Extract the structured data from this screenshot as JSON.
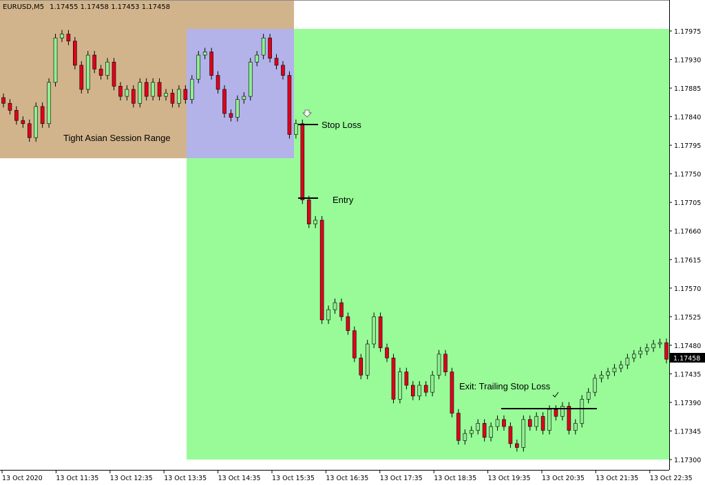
{
  "header": {
    "symbol": "EURUSD,M5",
    "ohlc": "1.17455 1.17458 1.17453 1.17458"
  },
  "colors": {
    "asian_zone": "#d2b48c",
    "overlap_zone": "#b3b3ea",
    "trade_zone": "#98fb98",
    "bull_candle": "#90ee90",
    "bear_candle": "#e0001b",
    "price_label_bg": "#000000"
  },
  "annotations": {
    "asian_range": "Tight Asian Session Range",
    "stop_loss": "Stop Loss",
    "entry": "Entry",
    "exit": "Exit: Trailing Stop Loss"
  },
  "chart_data": {
    "type": "candlestick",
    "title": "",
    "current_price": "1.17458",
    "y_ticks": [
      "1.17975",
      "1.17930",
      "1.17885",
      "1.17840",
      "1.17795",
      "1.17750",
      "1.17705",
      "1.17660",
      "1.17615",
      "1.17570",
      "1.17525",
      "1.17480",
      "1.17435",
      "1.17390",
      "1.17345",
      "1.17300"
    ],
    "ylim": [
      1.173,
      1.17975
    ],
    "x_ticks": [
      "13 Oct 2020",
      "13 Oct 11:35",
      "13 Oct 12:35",
      "13 Oct 13:35",
      "13 Oct 14:35",
      "13 Oct 15:35",
      "13 Oct 16:35",
      "13 Oct 17:35",
      "13 Oct 18:35",
      "13 Oct 19:35",
      "13 Oct 20:35",
      "13 Oct 21:35",
      "13 Oct 22:35"
    ],
    "first_open": 1.1787,
    "closes": [
      1.17861,
      1.1785,
      1.17834,
      1.17829,
      1.17807,
      1.17856,
      1.17829,
      1.17894,
      1.17964,
      1.1797,
      1.17959,
      1.17921,
      1.17883,
      1.17937,
      1.17915,
      1.17905,
      1.17926,
      1.17888,
      1.17872,
      1.17883,
      1.17861,
      1.17894,
      1.17872,
      1.17894,
      1.17872,
      1.17877,
      1.17861,
      1.17883,
      1.17867,
      1.17899,
      1.17937,
      1.17942,
      1.17905,
      1.17883,
      1.17845,
      1.17839,
      1.17867,
      1.17872,
      1.17926,
      1.17937,
      1.17964,
      1.17932,
      1.17921,
      1.17905,
      1.17812,
      1.17829,
      1.17709,
      1.17671,
      1.17677,
      1.1752,
      1.17536,
      1.17547,
      1.17525,
      1.17503,
      1.1746,
      1.17433,
      1.17482,
      1.17525,
      1.17476,
      1.1746,
      1.17395,
      1.17438,
      1.17417,
      1.174,
      1.17417,
      1.17406,
      1.17433,
      1.17466,
      1.17438,
      1.17373,
      1.1733,
      1.17341,
      1.17346,
      1.17357,
      1.17335,
      1.17352,
      1.17363,
      1.17352,
      1.17325,
      1.17319,
      1.17363,
      1.17352,
      1.17368,
      1.17346,
      1.17379,
      1.17368,
      1.17384,
      1.17346,
      1.17357,
      1.17395,
      1.17406,
      1.17428,
      1.17433,
      1.17438,
      1.17444,
      1.17449,
      1.1746,
      1.17466,
      1.17471,
      1.17476,
      1.17482,
      1.17484,
      1.17458
    ]
  }
}
